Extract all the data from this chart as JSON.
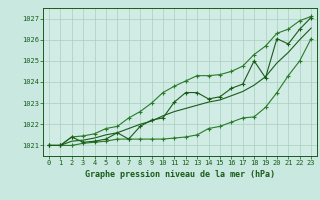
{
  "xlabel": "Graphe pression niveau de la mer (hPa)",
  "x": [
    0,
    1,
    2,
    3,
    4,
    5,
    6,
    7,
    8,
    9,
    10,
    11,
    12,
    13,
    14,
    15,
    16,
    17,
    18,
    19,
    20,
    21,
    22,
    23
  ],
  "y_actual": [
    1021.0,
    1021.0,
    1021.4,
    1021.15,
    1021.2,
    1021.3,
    1021.6,
    1021.3,
    1021.9,
    1022.2,
    1022.3,
    1023.05,
    1023.5,
    1023.5,
    1023.2,
    1023.3,
    1023.7,
    1023.9,
    1025.0,
    1024.2,
    1026.05,
    1025.8,
    1026.5,
    1027.05
  ],
  "y_min": [
    1021.0,
    1021.0,
    1021.0,
    1021.1,
    1021.15,
    1021.2,
    1021.3,
    1021.3,
    1021.3,
    1021.3,
    1021.3,
    1021.35,
    1021.4,
    1021.5,
    1021.8,
    1021.9,
    1022.1,
    1022.3,
    1022.35,
    1022.8,
    1023.5,
    1024.3,
    1025.0,
    1026.05
  ],
  "y_max": [
    1021.0,
    1021.0,
    1021.4,
    1021.45,
    1021.55,
    1021.8,
    1021.9,
    1022.3,
    1022.6,
    1023.0,
    1023.5,
    1023.8,
    1024.05,
    1024.3,
    1024.3,
    1024.35,
    1024.5,
    1024.75,
    1025.3,
    1025.7,
    1026.3,
    1026.5,
    1026.9,
    1027.1
  ],
  "y_avg": [
    1021.0,
    1021.0,
    1021.2,
    1021.25,
    1021.35,
    1021.5,
    1021.6,
    1021.8,
    1022.0,
    1022.15,
    1022.4,
    1022.6,
    1022.75,
    1022.9,
    1023.05,
    1023.15,
    1023.35,
    1023.55,
    1023.85,
    1024.25,
    1024.9,
    1025.4,
    1026.0,
    1026.55
  ],
  "bg_color": "#c8e8e0",
  "plot_bg_color": "#d0ece4",
  "grid_color": "#a8cfc0",
  "line_dark": "#1a5c1a",
  "line_medium": "#2a7a2a",
  "marker": "+",
  "ylim_min": 1020.5,
  "ylim_max": 1027.5,
  "yticks": [
    1021,
    1022,
    1023,
    1024,
    1025,
    1026,
    1027
  ],
  "xticks": [
    0,
    1,
    2,
    3,
    4,
    5,
    6,
    7,
    8,
    9,
    10,
    11,
    12,
    13,
    14,
    15,
    16,
    17,
    18,
    19,
    20,
    21,
    22,
    23
  ]
}
